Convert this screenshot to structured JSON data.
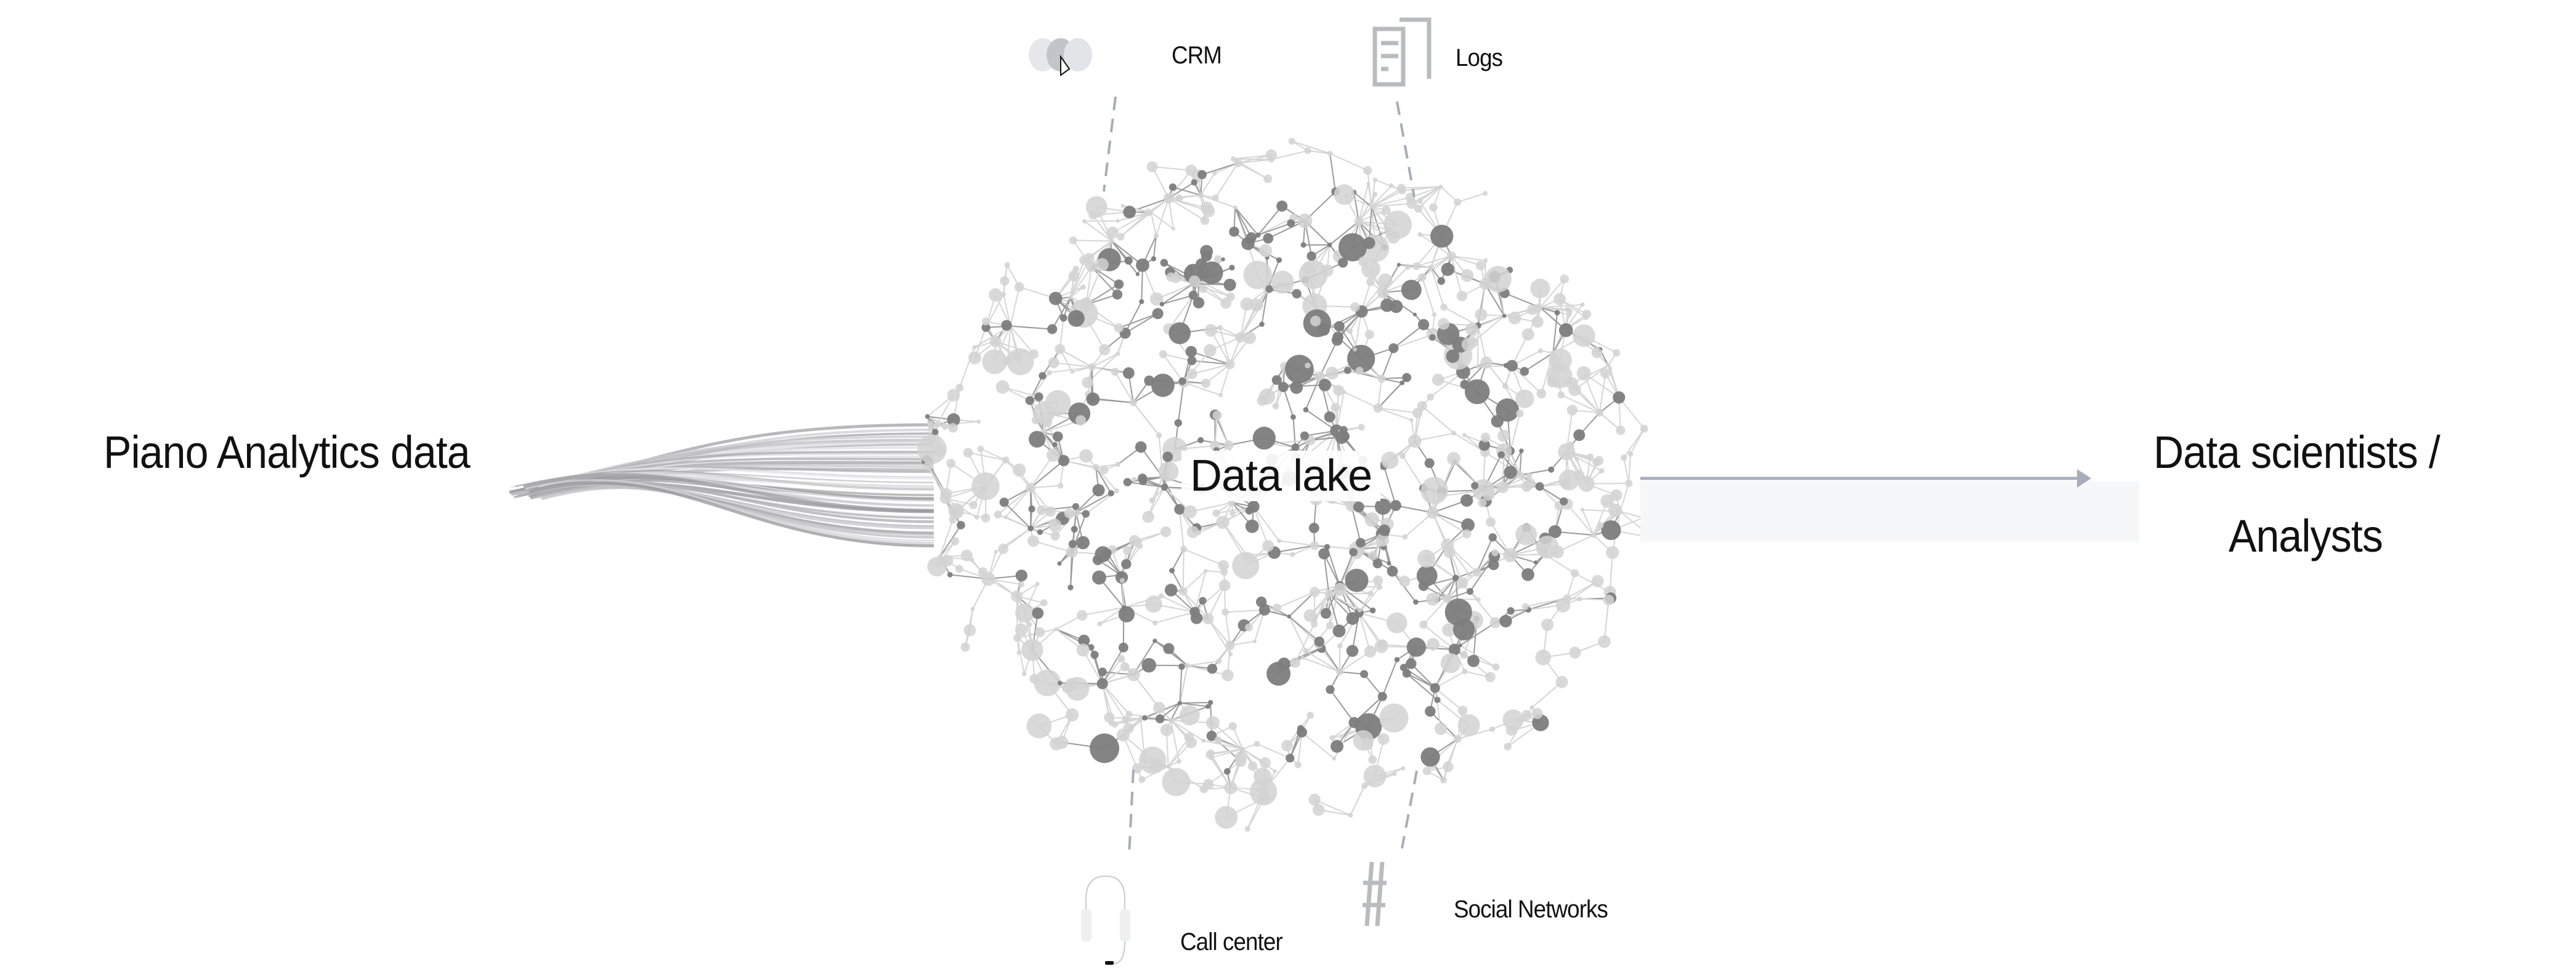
{
  "source": {
    "label": "Piano Analytics data"
  },
  "hub": {
    "label": "Data lake"
  },
  "inputs": [
    {
      "label": "CRM",
      "icon": "three-dots-icon"
    },
    {
      "label": "Logs",
      "icon": "document-stack-icon"
    },
    {
      "label": "Call center",
      "icon": "headset-icon"
    },
    {
      "label": "Social Networks",
      "icon": "hashtag-icon"
    }
  ],
  "target": {
    "line1": "Data scientists /",
    "line2": "Analysts"
  },
  "colors": {
    "node_light": "#d2d2d2",
    "node_dark": "#7d7d7d",
    "dash": "#a8adb5",
    "arrow": "#a9acbb",
    "icon": "#b9bbbe"
  }
}
